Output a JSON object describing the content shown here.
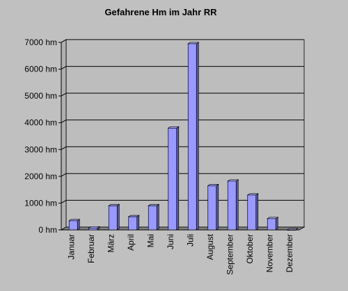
{
  "chart_data": {
    "type": "bar",
    "title": "Gefahrene Hm im Jahr RR",
    "xlabel": "",
    "ylabel": "",
    "unit": "hm",
    "ylim": [
      0,
      7000
    ],
    "ytick_values": [
      0,
      1000,
      2000,
      3000,
      4000,
      5000,
      6000,
      7000
    ],
    "ytick_labels": [
      "0 hm",
      "1000 hm",
      "2000 hm",
      "3000 hm",
      "4000 hm",
      "5000 hm",
      "6000 hm",
      "7000 hm"
    ],
    "grid": true,
    "legend": "none",
    "categories": [
      "Januar",
      "Februar",
      "März",
      "April",
      "Mai",
      "Juni",
      "Juli",
      "August",
      "September",
      "Oktober",
      "November",
      "Dezember"
    ],
    "values": [
      340,
      70,
      900,
      490,
      900,
      3800,
      6950,
      1650,
      1820,
      1300,
      420,
      0
    ],
    "colors": {
      "bar_front": "#9999ff",
      "bar_side": "#5c5cb8",
      "bar_top": "#b3b3ff",
      "background": "#c0c0c0",
      "wall": "#bdbdbd",
      "floor": "#808080",
      "grid": "#000000"
    }
  }
}
